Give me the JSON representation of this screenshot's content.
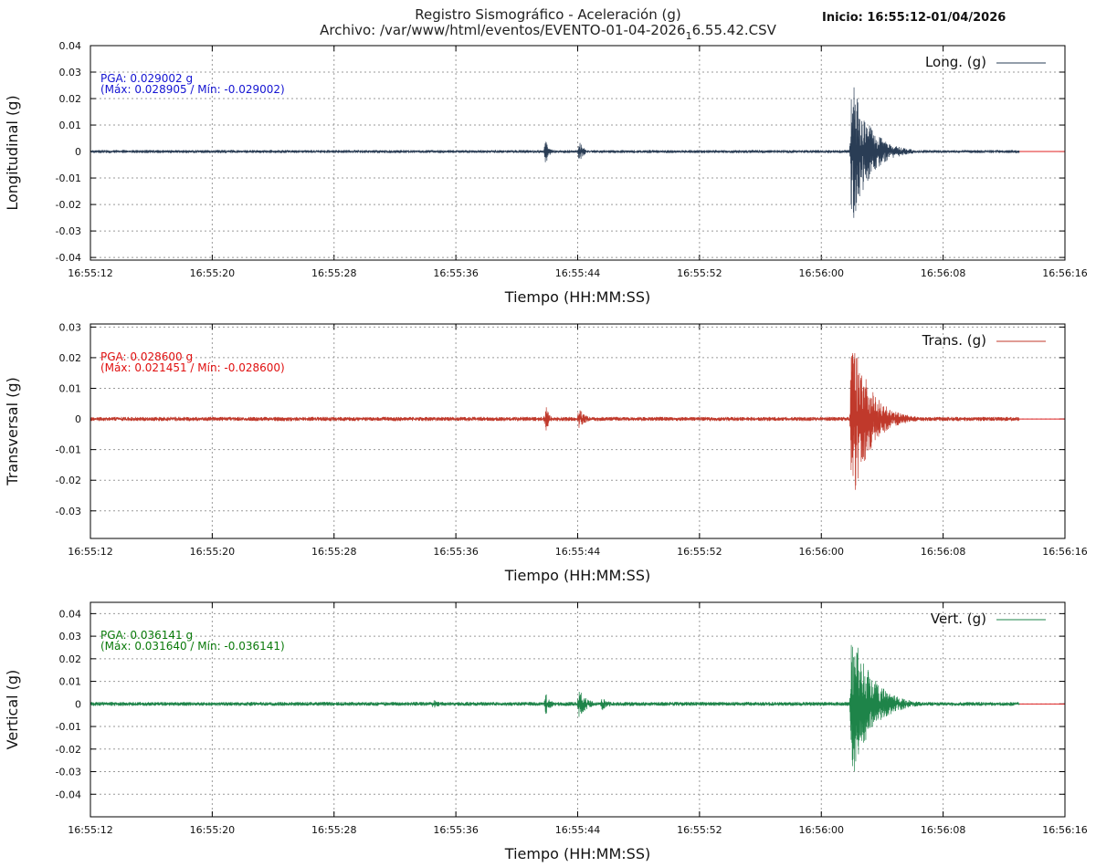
{
  "header": {
    "title_line1": "Registro Sismográfico - Aceleración (g)",
    "title_line2": "Archivo: /var/www/html/eventos/EVENTO-01-04-2026",
    "title_sub": "1",
    "title_line2_end": "6.55.42.CSV",
    "start_label": "Inicio: 16:55:12-01/04/2026"
  },
  "chart_data": [
    {
      "type": "line",
      "xlabel": "Tiempo (HH:MM:SS)",
      "ylabel": "Longitudinal (g)",
      "legend": "Long. (g)",
      "legend_position": "top-right",
      "color": "#2a3d55",
      "pga_color": "#1414d2",
      "pga_label": "PGA: 0.029002 g",
      "pga_range": "(Máx: 0.028905 / Mín: -0.029002)",
      "max": 0.028905,
      "min": -0.029002,
      "ylim": [
        -0.041,
        0.04
      ],
      "yticks": [
        -0.04,
        -0.03,
        -0.02,
        -0.01,
        0,
        0.01,
        0.02,
        0.03,
        0.04
      ],
      "ytick_labels": [
        "-0.04",
        "-0.03",
        "-0.02",
        "-0.01",
        "0",
        "0.01",
        "0.02",
        "0.03",
        "0.04"
      ],
      "xticks": [
        "16:55:12",
        "16:55:20",
        "16:55:28",
        "16:55:36",
        "16:55:44",
        "16:55:52",
        "16:56:00",
        "16:56:08",
        "16:56:16"
      ],
      "xlim_seconds": [
        0,
        64
      ],
      "signal_end_seconds": 61,
      "grid": true,
      "noise": 0.0006,
      "events": [
        {
          "t": 29.9,
          "amp": 0.005,
          "dur": 0.35
        },
        {
          "t": 32.1,
          "amp": 0.004,
          "dur": 0.5
        },
        {
          "t": 50.0,
          "amp": 0.029,
          "dur": 1.8
        }
      ]
    },
    {
      "type": "line",
      "xlabel": "Tiempo (HH:MM:SS)",
      "ylabel": "Transversal (g)",
      "legend": "Trans. (g)",
      "legend_position": "top-right",
      "color": "#c0392b",
      "pga_color": "#e01010",
      "pga_label": "PGA: 0.028600 g",
      "pga_range": "(Máx: 0.021451 / Mín: -0.028600)",
      "max": 0.021451,
      "min": -0.0286,
      "ylim": [
        -0.039,
        0.031
      ],
      "yticks": [
        -0.03,
        -0.02,
        -0.01,
        0,
        0.01,
        0.02,
        0.03
      ],
      "ytick_labels": [
        "-0.03",
        "-0.02",
        "-0.01",
        "0",
        "0.01",
        "0.02",
        "0.03"
      ],
      "xticks": [
        "16:55:12",
        "16:55:20",
        "16:55:28",
        "16:55:36",
        "16:55:44",
        "16:55:52",
        "16:56:00",
        "16:56:08",
        "16:56:16"
      ],
      "xlim_seconds": [
        0,
        64
      ],
      "signal_end_seconds": 61,
      "grid": true,
      "noise": 0.0007,
      "events": [
        {
          "t": 29.9,
          "amp": 0.005,
          "dur": 0.35
        },
        {
          "t": 32.1,
          "amp": 0.004,
          "dur": 0.6
        },
        {
          "t": 50.0,
          "amp": 0.0286,
          "dur": 1.9
        }
      ]
    },
    {
      "type": "line",
      "xlabel": "Tiempo (HH:MM:SS)",
      "ylabel": "Vertical (g)",
      "legend": "Vert. (g)",
      "legend_position": "top-right",
      "color": "#1e8449",
      "pga_color": "#0a7a0a",
      "pga_label": "PGA: 0.036141 g",
      "pga_range": "(Máx: 0.031640 / Mín: -0.036141)",
      "max": 0.03164,
      "min": -0.036141,
      "ylim": [
        -0.05,
        0.045
      ],
      "yticks": [
        -0.04,
        -0.03,
        -0.02,
        -0.01,
        0,
        0.01,
        0.02,
        0.03,
        0.04
      ],
      "ytick_labels": [
        "-0.04",
        "-0.03",
        "-0.02",
        "-0.01",
        "0",
        "0.01",
        "0.02",
        "0.03",
        "0.04"
      ],
      "xticks": [
        "16:55:12",
        "16:55:20",
        "16:55:28",
        "16:55:36",
        "16:55:44",
        "16:55:52",
        "16:56:00",
        "16:56:08",
        "16:56:16"
      ],
      "xlim_seconds": [
        0,
        64
      ],
      "signal_end_seconds": 61,
      "grid": true,
      "noise": 0.0009,
      "events": [
        {
          "t": 22.5,
          "amp": 0.002,
          "dur": 1.0
        },
        {
          "t": 29.9,
          "amp": 0.005,
          "dur": 0.5
        },
        {
          "t": 32.1,
          "amp": 0.007,
          "dur": 0.8
        },
        {
          "t": 33.6,
          "amp": 0.003,
          "dur": 0.8
        },
        {
          "t": 50.0,
          "amp": 0.0361,
          "dur": 2.0
        }
      ]
    }
  ]
}
